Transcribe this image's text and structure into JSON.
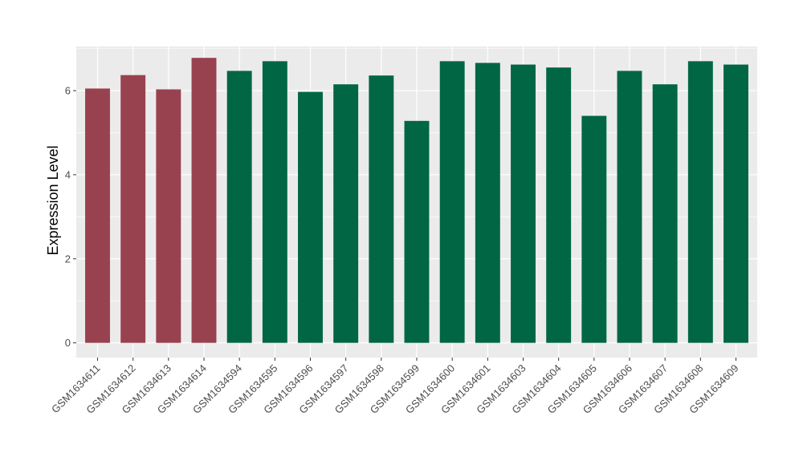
{
  "chart_data": {
    "type": "bar",
    "title": "",
    "xlabel": "",
    "ylabel": "Expression Level",
    "ylim": [
      -0.35,
      7.05
    ],
    "yticks": [
      0,
      2,
      4,
      6
    ],
    "grid": true,
    "legend": "none",
    "categories": [
      "GSM1634611",
      "GSM1634612",
      "GSM1634613",
      "GSM1634614",
      "GSM1634594",
      "GSM1634595",
      "GSM1634596",
      "GSM1634597",
      "GSM1634598",
      "GSM1634599",
      "GSM1634600",
      "GSM1634601",
      "GSM1634603",
      "GSM1634604",
      "GSM1634605",
      "GSM1634606",
      "GSM1634607",
      "GSM1634608",
      "GSM1634609"
    ],
    "values": [
      6.05,
      6.37,
      6.03,
      6.78,
      6.47,
      6.7,
      5.97,
      6.15,
      6.36,
      5.28,
      6.7,
      6.66,
      6.62,
      6.55,
      5.4,
      6.47,
      6.15,
      6.7,
      6.62
    ],
    "bar_colors": [
      "#99424f",
      "#99424f",
      "#99424f",
      "#99424f",
      "#006644",
      "#006644",
      "#006644",
      "#006644",
      "#006644",
      "#006644",
      "#006644",
      "#006644",
      "#006644",
      "#006644",
      "#006644",
      "#006644",
      "#006644",
      "#006644",
      "#006644"
    ],
    "panel_color": "#ebebeb",
    "grid_color": "#ffffff"
  }
}
